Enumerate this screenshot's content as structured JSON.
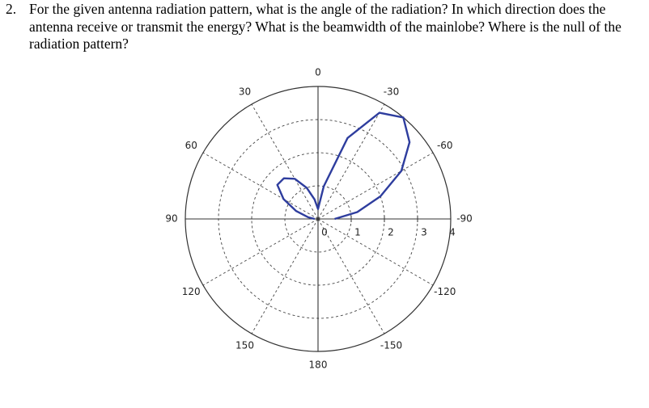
{
  "question": {
    "number": "2.",
    "text": "For the given antenna radiation pattern, what is the angle of the radiation? In which direction does the antenna receive or transmit the energy? What is the beamwidth of the mainlobe? Where is the null of the radiation pattern?"
  },
  "chart_data": {
    "type": "polar",
    "theta_zero_location": "N",
    "theta_direction": 1,
    "x": [
      -90,
      -80,
      -70,
      -60,
      -50,
      -40,
      -30,
      -20,
      -10,
      0,
      10,
      20,
      30,
      40,
      50,
      60,
      70,
      80,
      90
    ],
    "values": [
      0.5,
      1.2,
      2.0,
      2.9,
      3.6,
      4.0,
      3.7,
      2.6,
      1.0,
      0.3,
      0.6,
      1.0,
      1.4,
      1.6,
      1.6,
      1.2,
      0.7,
      0.3,
      0.1
    ],
    "color": "#2e3d9e",
    "ylim": [
      0,
      4
    ],
    "yticks": [
      0,
      1,
      2,
      3,
      4
    ],
    "xticks": [
      0,
      30,
      60,
      90,
      120,
      150,
      180,
      -150,
      -120,
      -90,
      -60,
      -30
    ],
    "grid": true
  }
}
